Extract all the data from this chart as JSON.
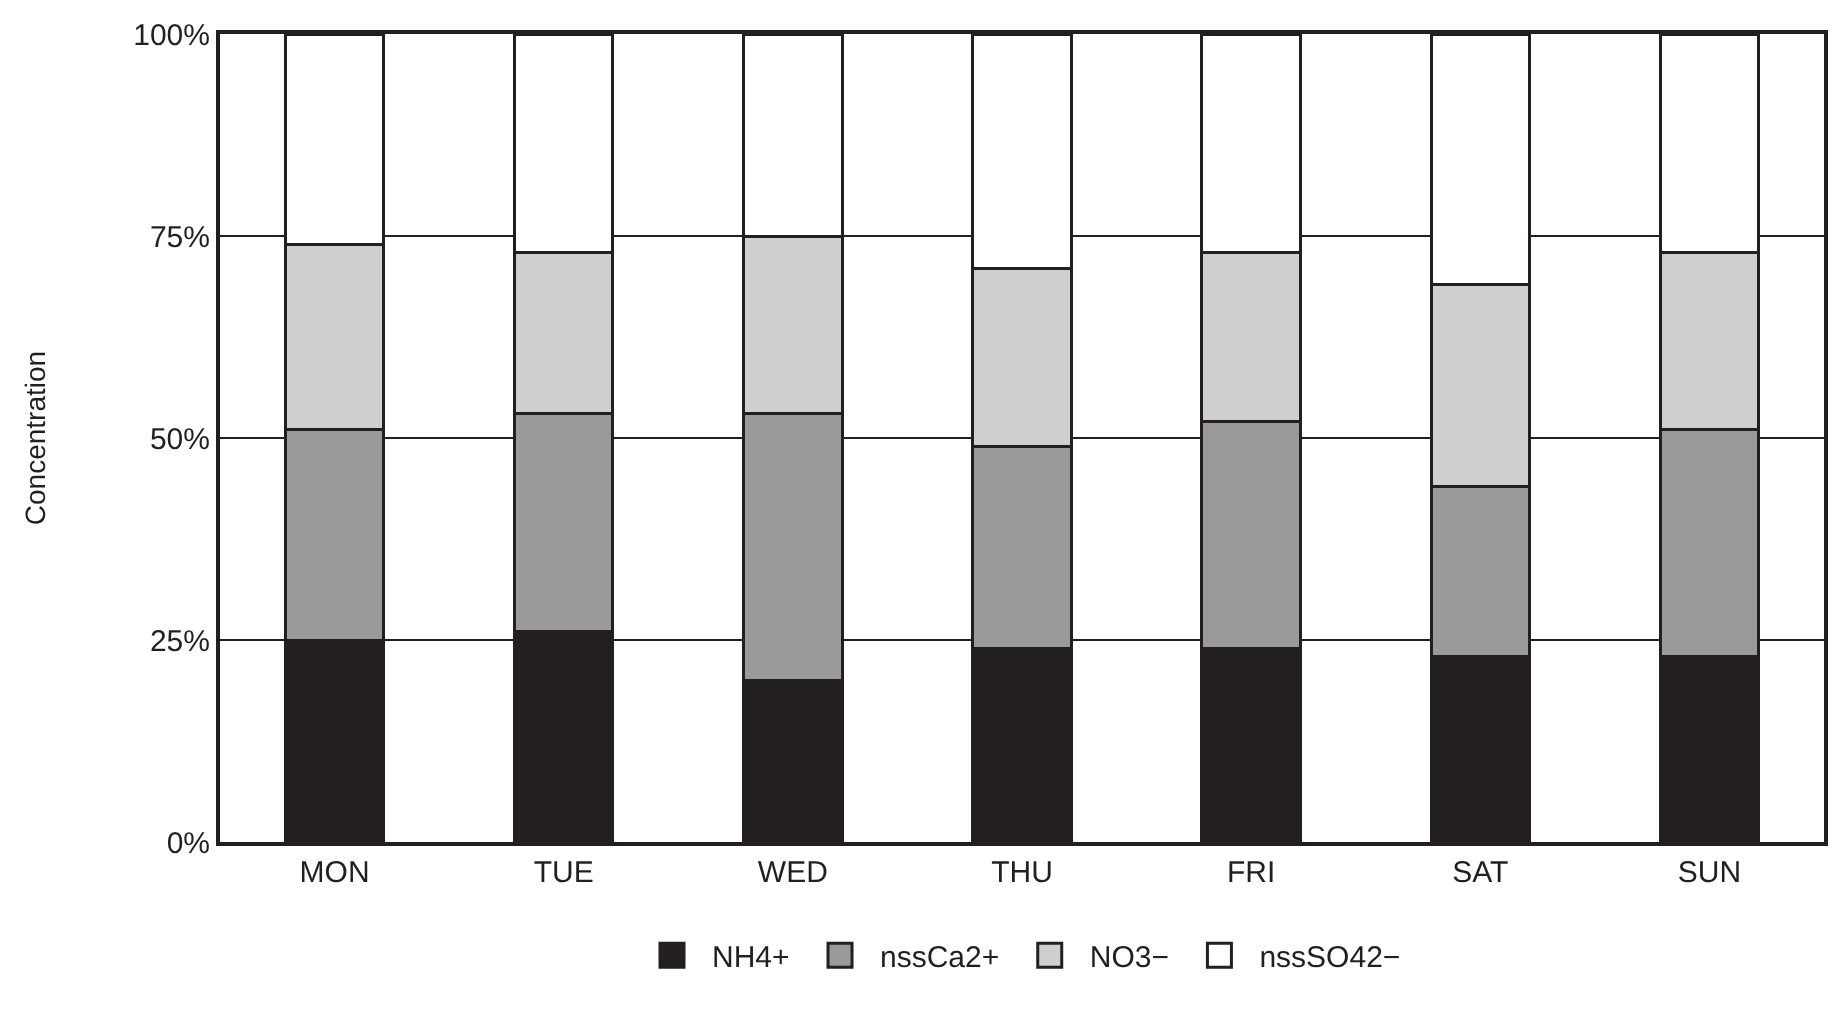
{
  "chart_data": {
    "type": "bar",
    "stacked": true,
    "ylabel": "Concentration",
    "categories": [
      "MON",
      "TUE",
      "WED",
      "THU",
      "FRI",
      "SAT",
      "SUN"
    ],
    "series": [
      {
        "name": "NH4+",
        "color": "#231f20",
        "values": [
          25,
          26,
          20,
          24,
          24,
          23,
          23
        ]
      },
      {
        "name": "nssCa2+",
        "color": "#9a9a9a",
        "values": [
          26,
          27,
          33,
          25,
          28,
          21,
          28
        ]
      },
      {
        "name": "NO3−",
        "color": "#cfcfcf",
        "values": [
          23,
          20,
          22,
          22,
          21,
          25,
          22
        ]
      },
      {
        "name": "nssSO42−",
        "color": "#ffffff",
        "values": [
          26,
          27,
          25,
          29,
          27,
          31,
          27
        ]
      }
    ],
    "ylim": [
      0,
      100
    ],
    "yticks": [
      {
        "value": 0,
        "label": "0%"
      },
      {
        "value": 25,
        "label": "25%"
      },
      {
        "value": 50,
        "label": "50%"
      },
      {
        "value": 75,
        "label": "75%"
      },
      {
        "value": 100,
        "label": "100%"
      }
    ],
    "grid": "y",
    "legend": "bottom"
  }
}
